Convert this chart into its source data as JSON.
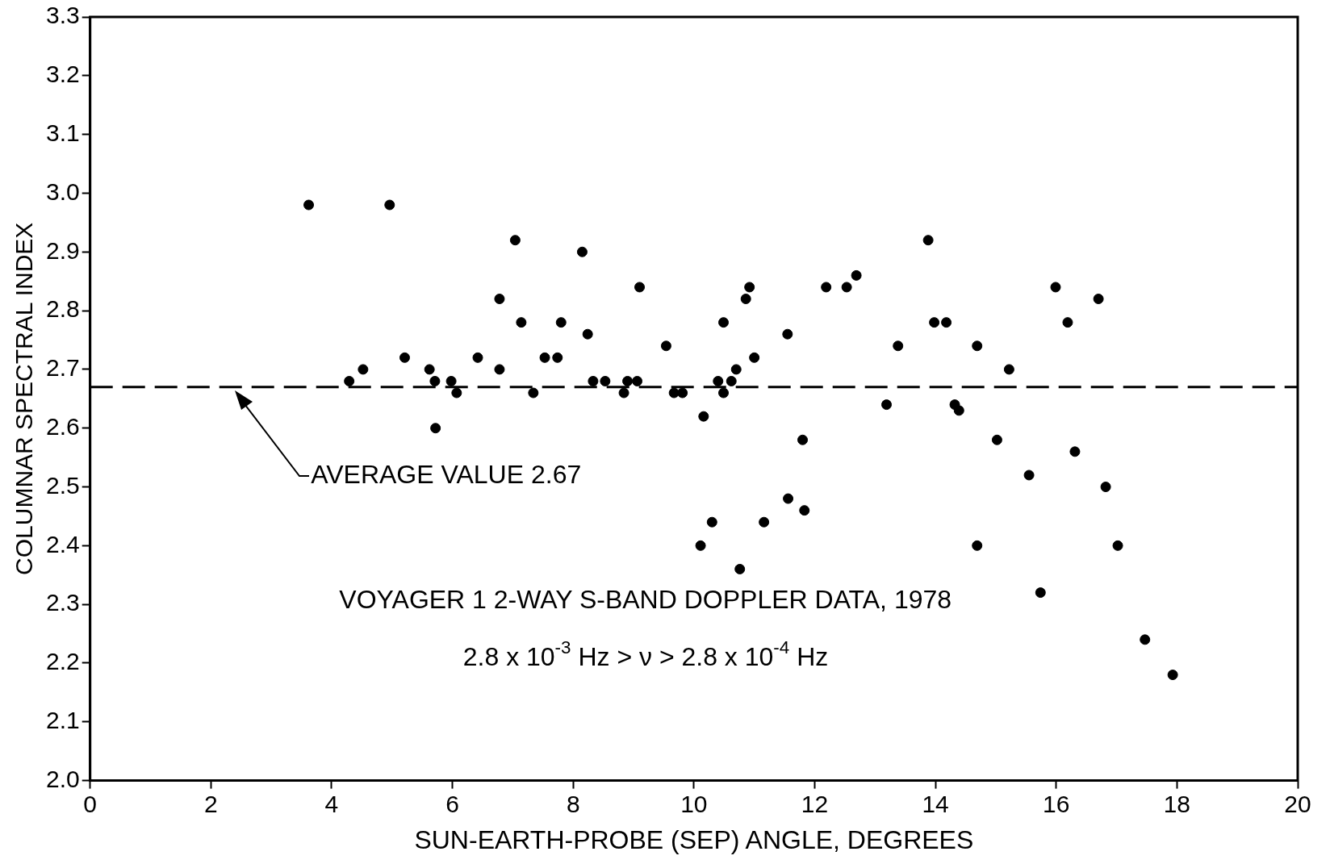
{
  "chart_data": {
    "type": "scatter",
    "xlabel": "SUN-EARTH-PROBE (SEP) ANGLE, DEGREES",
    "ylabel": "COLUMNAR SPECTRAL INDEX",
    "x": [
      3.62,
      4.29,
      4.52,
      4.96,
      5.21,
      5.62,
      5.71,
      5.72,
      5.98,
      6.07,
      6.42,
      6.78,
      6.78,
      7.04,
      7.14,
      7.34,
      7.53,
      7.74,
      7.8,
      8.15,
      8.24,
      8.33,
      8.53,
      8.84,
      8.9,
      9.06,
      9.1,
      9.54,
      9.67,
      9.81,
      10.11,
      10.16,
      10.3,
      10.4,
      10.49,
      10.49,
      10.62,
      10.7,
      10.76,
      10.86,
      10.92,
      11.0,
      11.16,
      11.55,
      11.56,
      11.8,
      11.83,
      12.19,
      12.53,
      12.69,
      13.19,
      13.38,
      13.88,
      13.98,
      14.18,
      14.32,
      14.39,
      14.69,
      14.69,
      15.02,
      15.22,
      15.55,
      15.74,
      15.99,
      16.19,
      16.31,
      16.7,
      16.82,
      17.02,
      17.47,
      17.93
    ],
    "values": [
      2.98,
      2.68,
      2.7,
      2.98,
      2.72,
      2.7,
      2.68,
      2.6,
      2.68,
      2.66,
      2.72,
      2.82,
      2.7,
      2.92,
      2.78,
      2.66,
      2.72,
      2.72,
      2.78,
      2.9,
      2.76,
      2.68,
      2.68,
      2.66,
      2.68,
      2.68,
      2.84,
      2.74,
      2.66,
      2.66,
      2.4,
      2.62,
      2.44,
      2.68,
      2.66,
      2.78,
      2.68,
      2.7,
      2.36,
      2.82,
      2.84,
      2.72,
      2.44,
      2.76,
      2.48,
      2.58,
      2.46,
      2.84,
      2.84,
      2.86,
      2.64,
      2.74,
      2.92,
      2.78,
      2.78,
      2.64,
      2.63,
      2.74,
      2.4,
      2.58,
      2.7,
      2.52,
      2.32,
      2.84,
      2.78,
      2.56,
      2.82,
      2.5,
      2.4,
      2.24,
      2.18
    ],
    "color": "#000000",
    "marker": "circle",
    "xlim": [
      0,
      20
    ],
    "xticks": [
      0,
      2,
      4,
      6,
      8,
      10,
      12,
      14,
      16,
      18,
      20
    ],
    "ylim": [
      2.0,
      3.3
    ],
    "yticks": [
      {
        "value": 2.0,
        "label": "2.0"
      },
      2.1,
      2.2,
      2.3,
      2.4,
      2.5,
      2.6,
      2.7,
      2.8,
      2.9,
      {
        "value": 3.0,
        "label": "3.0"
      },
      3.1,
      3.2,
      3.3
    ],
    "grid": false,
    "legend": false,
    "ref_lines": [
      {
        "axis": "y",
        "value": 2.67,
        "label": "AVERAGE VALUE 2.67",
        "color": "#000000",
        "line_style": "dashed"
      }
    ],
    "annotations": [
      "VOYAGER 1 2-WAY S-BAND DOPPLER DATA, 1978",
      "2.8 x 10$^{-3}$ Hz > ν > 2.8 x 10$^{-4}$ Hz"
    ]
  }
}
